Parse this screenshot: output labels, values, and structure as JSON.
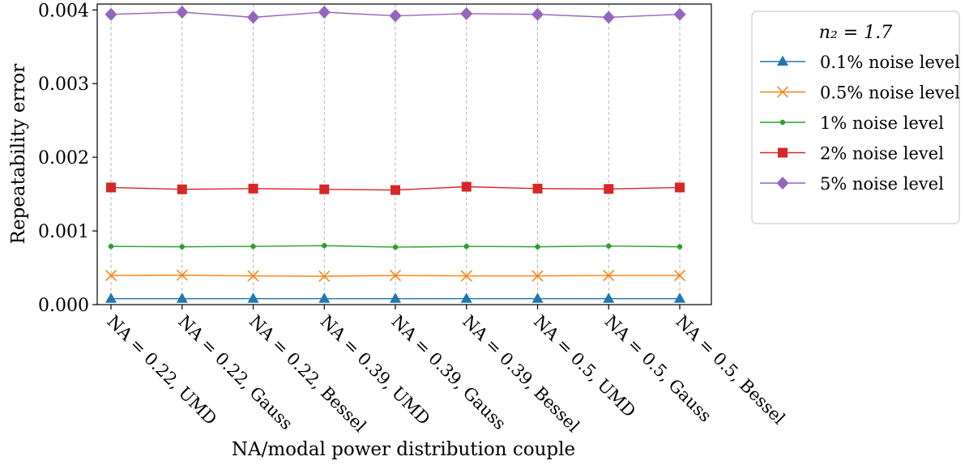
{
  "chart_data": {
    "type": "line",
    "title": "",
    "xlabel": "NA/modal power distribution couple",
    "ylabel": "Repeatability error",
    "categories": [
      "NA = 0.22, UMD",
      "NA = 0.22, Gauss",
      "NA = 0.22, Bessel",
      "NA = 0.39, UMD",
      "NA = 0.39, Gauss",
      "NA = 0.39, Bessel",
      "NA = 0.5, UMD",
      "NA = 0.5, Gauss",
      "NA = 0.5, Bessel"
    ],
    "ylim": [
      0,
      0.00408
    ],
    "yticks": [
      "0.000",
      "0.001",
      "0.002",
      "0.003",
      "0.004"
    ],
    "ytick_values": [
      0,
      0.001,
      0.002,
      0.003,
      0.004
    ],
    "grid": "vertical dashed at categories",
    "legend": {
      "title": "n₂ = 1.7",
      "placement": "outside right"
    },
    "series": [
      {
        "name": "0.1% noise level",
        "color": "#1f77b4",
        "marker": "triangle",
        "values": [
          8e-05,
          8e-05,
          8e-05,
          8e-05,
          8e-05,
          8e-05,
          8e-05,
          8e-05,
          8e-05
        ]
      },
      {
        "name": "0.5% noise level",
        "color": "#ff7f0e",
        "marker": "x",
        "values": [
          0.000395,
          0.0004,
          0.00039,
          0.000385,
          0.000395,
          0.00039,
          0.00039,
          0.000395,
          0.000395
        ]
      },
      {
        "name": "1% noise level",
        "color": "#2ca02c",
        "marker": "dot",
        "values": [
          0.00079,
          0.000785,
          0.00079,
          0.0008,
          0.00078,
          0.00079,
          0.000785,
          0.000795,
          0.000785
        ]
      },
      {
        "name": "2% noise level",
        "color": "#d62728",
        "marker": "square",
        "values": [
          0.00159,
          0.001565,
          0.001575,
          0.001565,
          0.001555,
          0.0016,
          0.001575,
          0.00157,
          0.00159
        ]
      },
      {
        "name": "5% noise level",
        "color": "#9467bd",
        "marker": "diamond",
        "values": [
          0.00394,
          0.00397,
          0.0039,
          0.00397,
          0.00392,
          0.00395,
          0.00394,
          0.0039,
          0.00394
        ]
      }
    ]
  }
}
